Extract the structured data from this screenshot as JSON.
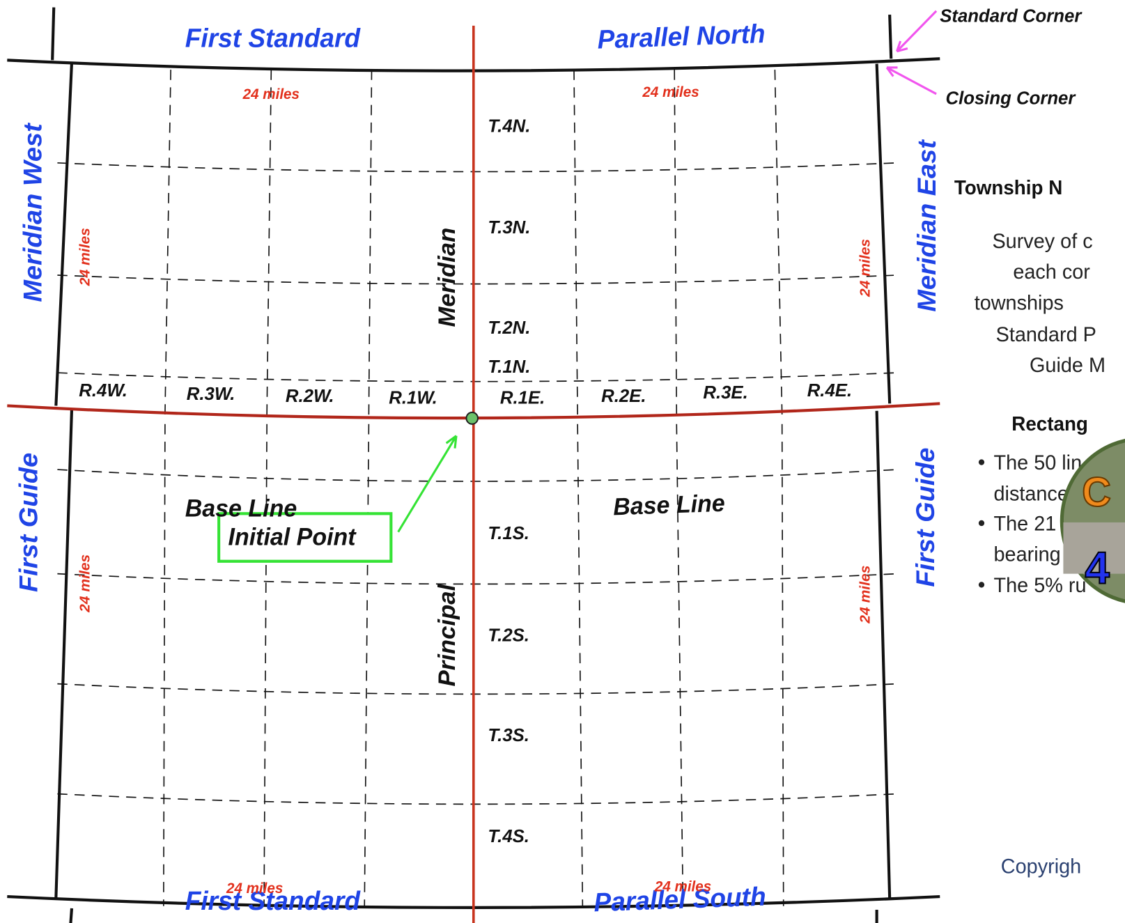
{
  "map": {
    "top": [
      "First Standard",
      "Parallel North"
    ],
    "bottom": [
      "First Standard",
      "Parallel South"
    ],
    "left": [
      "Meridian West",
      "First Guide"
    ],
    "right": [
      "Meridian East",
      "First Guide"
    ],
    "meridian": [
      "Meridian",
      "Principal"
    ],
    "townships": [
      "T.4N.",
      "T.3N.",
      "T.2N.",
      "T.1N.",
      "T.1S.",
      "T.2S.",
      "T.3S.",
      "T.4S."
    ],
    "ranges": [
      "R.4W.",
      "R.3W.",
      "R.2W.",
      "R.1W.",
      "R.1E.",
      "R.2E.",
      "R.3E.",
      "R.4E."
    ],
    "distances": [
      "24 miles",
      "24 miles",
      "24 miles",
      "24 miles",
      "24 miles",
      "24 miles",
      "24 miles",
      "24 miles"
    ],
    "base_line": [
      "Base Line",
      "Base Line"
    ],
    "initial_point": "Initial Point",
    "corners": [
      "Standard Corner",
      "Closing Corner"
    ]
  },
  "sidebar": {
    "heading": "Township N",
    "paragraph": [
      "Survey of c",
      "each cor",
      "townships",
      "Standard P",
      "Guide M"
    ],
    "subheading": "Rectang",
    "bullets": [
      [
        "The 50 lin",
        "distance"
      ],
      [
        "The 21 mi",
        "bearing"
      ],
      [
        "The 5% ru"
      ]
    ],
    "logo": [
      "C",
      "4"
    ],
    "copyright": "Copyrigh"
  }
}
